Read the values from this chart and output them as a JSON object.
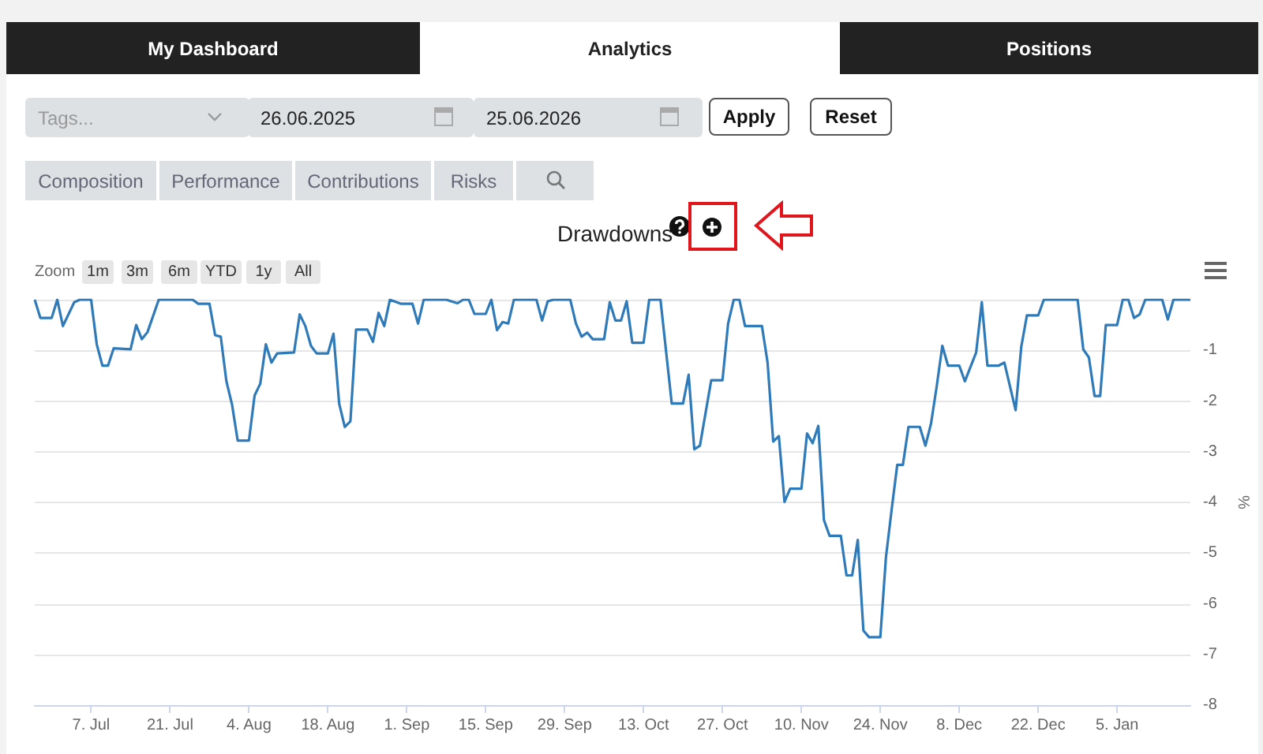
{
  "chart_data": [
    {
      "type": "other",
      "annotations": [
        "My Dashboard",
        "Analytics",
        "Positions",
        "Tags...",
        "26.06.2025",
        "25.06.2026",
        "Apply",
        "Reset",
        "Composition",
        "Performance",
        "Contributions",
        "Risks"
      ]
    },
    {
      "type": "line",
      "title": "Drawdowns",
      "ylabel": "%",
      "color": "#2f7ab8",
      "grid": "y",
      "annotations": [
        "Zoom",
        "1m",
        "3m",
        "6m",
        "YTD",
        "1y",
        "All"
      ],
      "xlim": [
        "2025-06-27",
        "2026-01-18"
      ],
      "ylim": [
        -8,
        0
      ],
      "xticks": [
        {
          "value": "2025-07-07",
          "label": "7. Jul"
        },
        {
          "value": "2025-07-21",
          "label": "21. Jul"
        },
        {
          "value": "2025-08-04",
          "label": "4. Aug"
        },
        {
          "value": "2025-08-18",
          "label": "18. Aug"
        },
        {
          "value": "2025-09-01",
          "label": "1. Sep"
        },
        {
          "value": "2025-09-15",
          "label": "15. Sep"
        },
        {
          "value": "2025-09-29",
          "label": "29. Sep"
        },
        {
          "value": "2025-10-13",
          "label": "13. Oct"
        },
        {
          "value": "2025-10-27",
          "label": "27. Oct"
        },
        {
          "value": "2025-11-10",
          "label": "10. Nov"
        },
        {
          "value": "2025-11-24",
          "label": "24. Nov"
        },
        {
          "value": "2025-12-08",
          "label": "8. Dec"
        },
        {
          "value": "2025-12-22",
          "label": "22. Dec"
        },
        {
          "value": "2026-01-05",
          "label": "5. Jan"
        }
      ],
      "yticks": [
        {
          "value": 0,
          "label": null
        },
        -1,
        -2,
        -3,
        -4,
        -5,
        -6,
        -7,
        -8
      ],
      "x": [
        "2025-06-27",
        "2025-06-28",
        "2025-06-30",
        "2025-07-01",
        "2025-07-02",
        "2025-07-04",
        "2025-07-05",
        "2025-07-07",
        "2025-07-08",
        "2025-07-09",
        "2025-07-10",
        "2025-07-11",
        "2025-07-14",
        "2025-07-15",
        "2025-07-16",
        "2025-07-17",
        "2025-07-19",
        "2025-07-22",
        "2025-07-25",
        "2025-07-26",
        "2025-07-28",
        "2025-07-29",
        "2025-07-30",
        "2025-07-31",
        "2025-08-01",
        "2025-08-02",
        "2025-08-04",
        "2025-08-05",
        "2025-08-06",
        "2025-08-07",
        "2025-08-08",
        "2025-08-09",
        "2025-08-12",
        "2025-08-13",
        "2025-08-14",
        "2025-08-15",
        "2025-08-16",
        "2025-08-18",
        "2025-08-19",
        "2025-08-20",
        "2025-08-21",
        "2025-08-22",
        "2025-08-23",
        "2025-08-25",
        "2025-08-26",
        "2025-08-27",
        "2025-08-28",
        "2025-08-29",
        "2025-08-31",
        "2025-09-02",
        "2025-09-03",
        "2025-09-04",
        "2025-09-08",
        "2025-09-10",
        "2025-09-11",
        "2025-09-12",
        "2025-09-13",
        "2025-09-15",
        "2025-09-16",
        "2025-09-17",
        "2025-09-18",
        "2025-09-19",
        "2025-09-20",
        "2025-09-24",
        "2025-09-25",
        "2025-09-26",
        "2025-09-27",
        "2025-09-30",
        "2025-10-01",
        "2025-10-02",
        "2025-10-03",
        "2025-10-04",
        "2025-10-06",
        "2025-10-07",
        "2025-10-08",
        "2025-10-09",
        "2025-10-10",
        "2025-10-11",
        "2025-10-13",
        "2025-10-14",
        "2025-10-16",
        "2025-10-18",
        "2025-10-20",
        "2025-10-21",
        "2025-10-22",
        "2025-10-23",
        "2025-10-25",
        "2025-10-27",
        "2025-10-28",
        "2025-10-29",
        "2025-10-30",
        "2025-10-31",
        "2025-11-03",
        "2025-11-04",
        "2025-11-05",
        "2025-11-06",
        "2025-11-07",
        "2025-11-08",
        "2025-11-10",
        "2025-11-11",
        "2025-11-12",
        "2025-11-13",
        "2025-11-14",
        "2025-11-15",
        "2025-11-17",
        "2025-11-18",
        "2025-11-19",
        "2025-11-20",
        "2025-11-21",
        "2025-11-22",
        "2025-11-24",
        "2025-11-25",
        "2025-11-26",
        "2025-11-27",
        "2025-11-28",
        "2025-11-29",
        "2025-12-01",
        "2025-12-02",
        "2025-12-03",
        "2025-12-04",
        "2025-12-05",
        "2025-12-06",
        "2025-12-08",
        "2025-12-09",
        "2025-12-11",
        "2025-12-12",
        "2025-12-13",
        "2025-12-15",
        "2025-12-16",
        "2025-12-18",
        "2025-12-19",
        "2025-12-20",
        "2025-12-22",
        "2025-12-23",
        "2025-12-29",
        "2025-12-30",
        "2025-12-31",
        "2026-01-01",
        "2026-01-02",
        "2026-01-03",
        "2026-01-05",
        "2026-01-06",
        "2026-01-07",
        "2026-01-08",
        "2026-01-09",
        "2026-01-10",
        "2026-01-13",
        "2026-01-14",
        "2026-01-15",
        "2026-01-18"
      ],
      "values": [
        0,
        -0.36,
        -0.36,
        0,
        -0.52,
        -0.05,
        0,
        0,
        -0.88,
        -1.3,
        -1.3,
        -0.96,
        -0.98,
        -0.5,
        -0.78,
        -0.64,
        0,
        0,
        0,
        -0.08,
        -0.08,
        -0.7,
        -0.73,
        -1.61,
        -2.07,
        -2.78,
        -2.78,
        -1.89,
        -1.66,
        -0.88,
        -1.24,
        -1.06,
        -1.04,
        -0.29,
        -0.52,
        -0.91,
        -1.06,
        -1.06,
        -0.67,
        -2.05,
        -2.51,
        -2.4,
        -0.59,
        -0.59,
        -0.83,
        -0.26,
        -0.52,
        0,
        -0.08,
        -0.08,
        -0.47,
        0,
        0,
        -0.07,
        0,
        0,
        -0.28,
        -0.28,
        0,
        -0.6,
        -0.44,
        -0.47,
        0,
        0,
        -0.41,
        -0.03,
        0,
        0,
        -0.47,
        -0.73,
        -0.65,
        -0.78,
        -0.78,
        -0.05,
        -0.41,
        -0.41,
        -0.03,
        -0.85,
        -0.85,
        0,
        0,
        -2.05,
        -2.05,
        -1.48,
        -2.95,
        -2.88,
        -1.59,
        -1.59,
        -0.47,
        0,
        0,
        -0.52,
        -0.52,
        -1.24,
        -2.8,
        -2.69,
        -3.99,
        -3.73,
        -3.73,
        -2.64,
        -2.83,
        -2.49,
        -4.35,
        -4.66,
        -4.66,
        -5.44,
        -5.44,
        -4.74,
        -6.53,
        -6.66,
        -6.66,
        -5.08,
        -4.15,
        -3.26,
        -3.26,
        -2.51,
        -2.51,
        -2.88,
        -2.44,
        -1.71,
        -0.91,
        -1.3,
        -1.3,
        -1.61,
        -1.04,
        -0.05,
        -1.3,
        -1.3,
        -1.24,
        -2.18,
        -0.93,
        -0.31,
        -0.31,
        0,
        0,
        -0.98,
        -1.14,
        -1.9,
        -1.9,
        -0.5,
        -0.5,
        0,
        0,
        -0.36,
        -0.29,
        0,
        0,
        -0.39,
        0,
        0
      ]
    }
  ]
}
